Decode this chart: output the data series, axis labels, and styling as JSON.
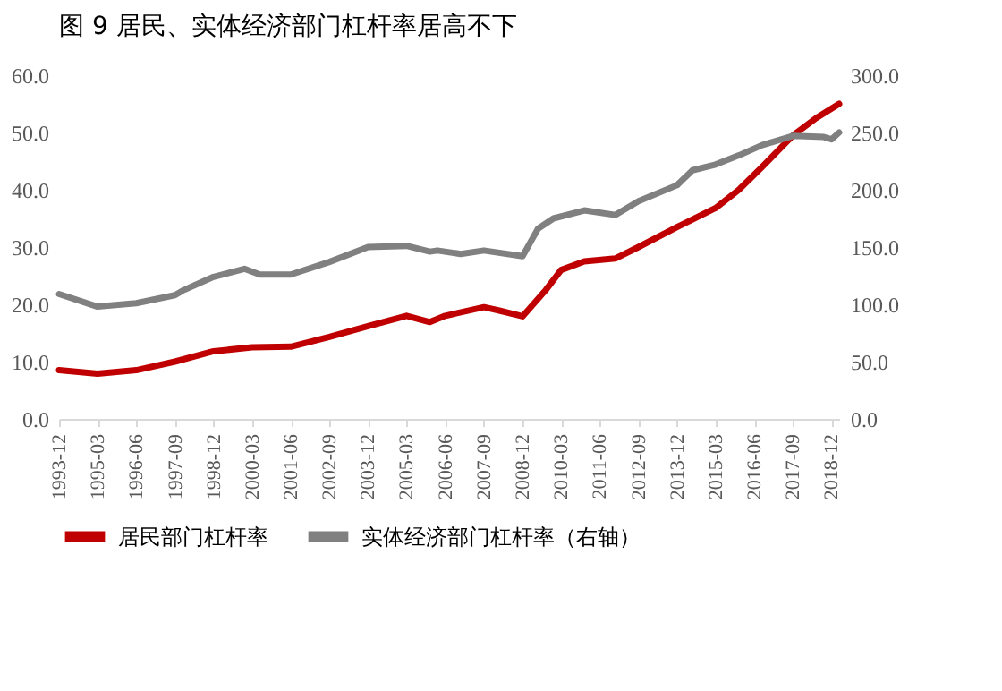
{
  "chart_data": {
    "type": "line",
    "title": "图 9 居民、实体经济部门杠杆率居高不下",
    "xlim": [
      "1993-12",
      "2019-03"
    ],
    "xticks": [
      "1993-12",
      "1995-03",
      "1996-06",
      "1997-09",
      "1998-12",
      "2000-03",
      "2001-06",
      "2002-09",
      "2003-12",
      "2005-03",
      "2006-06",
      "2007-09",
      "2008-12",
      "2010-03",
      "2011-06",
      "2012-09",
      "2013-12",
      "2015-03",
      "2016-06",
      "2017-09",
      "2018-12"
    ],
    "ylim": [
      0,
      60
    ],
    "yticks": [
      {
        "value": 0,
        "label": "0.0"
      },
      {
        "value": 10,
        "label": "10.0"
      },
      {
        "value": 20,
        "label": "20.0"
      },
      {
        "value": 30,
        "label": "30.0"
      },
      {
        "value": 40,
        "label": "40.0"
      },
      {
        "value": 50,
        "label": "50.0"
      },
      {
        "value": 60,
        "label": "60.0"
      }
    ],
    "y2lim": [
      0,
      300
    ],
    "y2ticks": [
      {
        "value": 0,
        "label": "0.0"
      },
      {
        "value": 50,
        "label": "50.0"
      },
      {
        "value": 100,
        "label": "100.0"
      },
      {
        "value": 150,
        "label": "150.0"
      },
      {
        "value": 200,
        "label": "200.0"
      },
      {
        "value": 250,
        "label": "250.0"
      },
      {
        "value": 300,
        "label": "300.0"
      }
    ],
    "legend": "bottom",
    "grid": false,
    "marker": "none",
    "line_style": "solid",
    "series": [
      {
        "name": "居民部门杠杆率",
        "color": "#c00000",
        "x": [
          "1993-12",
          "1995-03",
          "1996-06",
          "1997-09",
          "1998-12",
          "2000-03",
          "2001-06",
          "2002-09",
          "2003-12",
          "2005-03",
          "2005-12",
          "2006-06",
          "2007-09",
          "2008-03",
          "2008-12",
          "2009-09",
          "2010-03",
          "2010-12",
          "2011-12",
          "2012-09",
          "2013-12",
          "2015-03",
          "2015-12",
          "2016-09",
          "2017-09",
          "2018-06",
          "2019-03"
        ],
        "values": [
          8.5,
          7.9,
          8.5,
          10.0,
          11.8,
          12.5,
          12.6,
          14.3,
          16.2,
          18.0,
          16.9,
          18.0,
          19.5,
          18.9,
          17.9,
          22.5,
          26.0,
          27.5,
          28.0,
          30.0,
          33.5,
          36.8,
          40.0,
          44.0,
          49.5,
          52.5,
          55.0
        ]
      },
      {
        "name": "实体经济部门杠杆率（右轴）",
        "color": "#808080",
        "axis": "y2",
        "x": [
          "1993-12",
          "1995-03",
          "1996-06",
          "1997-09",
          "1997-12",
          "1998-12",
          "1999-12",
          "2000-06",
          "2001-06",
          "2002-09",
          "2003-12",
          "2005-03",
          "2005-12",
          "2006-03",
          "2006-12",
          "2007-09",
          "2008-12",
          "2009-06",
          "2009-12",
          "2010-12",
          "2011-12",
          "2012-09",
          "2013-12",
          "2014-06",
          "2015-03",
          "2015-12",
          "2016-09",
          "2017-09",
          "2018-09",
          "2018-12",
          "2019-03"
        ],
        "values": [
          109,
          98,
          101,
          108,
          112,
          124,
          131,
          126,
          126,
          137,
          150,
          151,
          146,
          147,
          144,
          147,
          142,
          166,
          175,
          182,
          178,
          190,
          204,
          217,
          222,
          230,
          239,
          247,
          246,
          244,
          250
        ]
      }
    ]
  }
}
